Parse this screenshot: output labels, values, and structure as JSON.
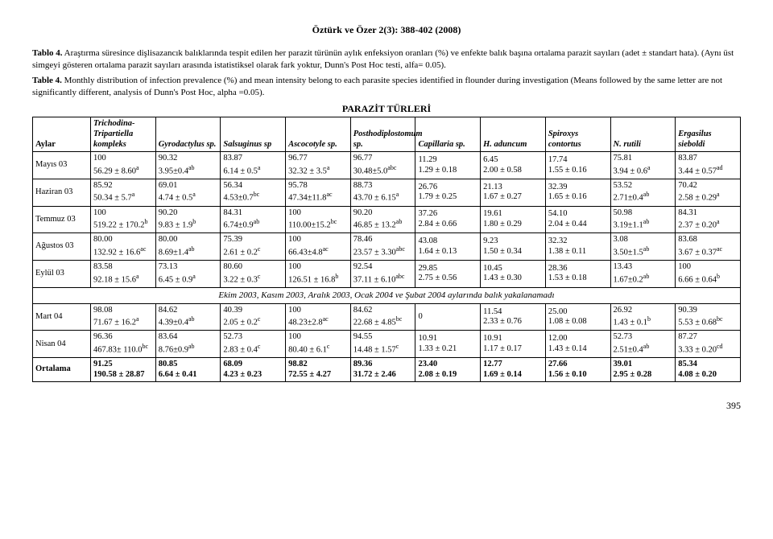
{
  "page_header": "Öztürk ve Özer 2(3): 388-402 (2008)",
  "caption_tr_label": "Tablo 4.",
  "caption_tr_text": "Araştırma süresince dişlisazancık balıklarında tespit edilen her parazit türünün aylık enfeksiyon oranları (%) ve enfekte balık başına ortalama parazit sayıları (adet ± standart hata). (Aynı üst simgeyi gösteren ortalama parazit sayıları arasında istatistiksel olarak fark yoktur, Dunn's Post Hoc testi, alfa= 0.05).",
  "caption_en_label": "Table 4.",
  "caption_en_text": "Monthly distribution of infection prevalence (%) and mean intensity belong to each parasite species identified in flounder during investigation (Means followed by the same letter are not significantly different, analysis of Dunn's Post Hoc, alpha =0.05).",
  "parazit_header": "PARAZİT TÜRLERİ",
  "columns": {
    "aylar": "Aylar",
    "c1": "Trichodina-Tripartiella kompleks",
    "c2": "Gyrodactylus sp.",
    "c3": "Salsuginus sp",
    "c4": "Ascocotyle sp.",
    "c5": "Posthodiplostomum sp.",
    "c6": "Capillaria sp.",
    "c7": "H. aduncum",
    "c8": "Spiroxys contortus",
    "c9": "N. rutili",
    "c10": "Ergasilus sieboldi"
  },
  "span_row_text": "Ekim 2003, Kasım 2003, Aralık 2003, Ocak 2004 ve Şubat 2004 aylarında balık yakalanamadı",
  "rows": [
    {
      "month": "Mayıs 03",
      "cells": [
        {
          "t": "100",
          "b": "56.29 ± 8.60",
          "sup": "a"
        },
        {
          "t": "90.32",
          "b": "3.95±0.4",
          "sup": "ab"
        },
        {
          "t": "83.87",
          "b": "6.14 ± 0.5",
          "sup": "a"
        },
        {
          "t": "96.77",
          "b": "32.32 ± 3.5",
          "sup": "a"
        },
        {
          "t": "96.77",
          "b": "30.48±5.0",
          "sup": "abc"
        },
        {
          "t": "11.29",
          "b": "1.29 ± 0.18",
          "sup": ""
        },
        {
          "t": "6.45",
          "b": "2.00 ± 0.58",
          "sup": ""
        },
        {
          "t": "17.74",
          "b": "1.55 ± 0.16",
          "sup": ""
        },
        {
          "t": "75.81",
          "b": "3.94 ± 0.6",
          "sup": "a"
        },
        {
          "t": "83.87",
          "b": "3.44 ± 0.57",
          "sup": "ad"
        }
      ]
    },
    {
      "month": "Haziran 03",
      "cells": [
        {
          "t": "85.92",
          "b": "50.34 ± 5.7",
          "sup": "a"
        },
        {
          "t": "69.01",
          "b": "4.74 ± 0.5",
          "sup": "a"
        },
        {
          "t": "56.34",
          "b": "4.53±0.7",
          "sup": "bc"
        },
        {
          "t": "95.78",
          "b": "47.34±11.8",
          "sup": "ac"
        },
        {
          "t": "88.73",
          "b": "43.70 ± 6.15",
          "sup": "a"
        },
        {
          "t": "26.76",
          "b": "1.79 ± 0.25",
          "sup": ""
        },
        {
          "t": "21.13",
          "b": "1.67 ± 0.27",
          "sup": ""
        },
        {
          "t": "32.39",
          "b": "1.65 ± 0.16",
          "sup": ""
        },
        {
          "t": "53.52",
          "b": "2.71±0.4",
          "sup": "ab"
        },
        {
          "t": "70.42",
          "b": "2.58 ± 0.29",
          "sup": "a"
        }
      ]
    },
    {
      "month": "Temmuz 03",
      "cells": [
        {
          "t": "100",
          "b": "519.22 ± 170.2",
          "sup": "b"
        },
        {
          "t": "90.20",
          "b": "9.83 ± 1.9",
          "sup": "b"
        },
        {
          "t": "84.31",
          "b": "6.74±0.9",
          "sup": "ab"
        },
        {
          "t": "100",
          "b": "110.00±15.2",
          "sup": "bc"
        },
        {
          "t": "90.20",
          "b": "46.85 ± 13.2",
          "sup": "ab"
        },
        {
          "t": "37.26",
          "b": "2.84 ± 0.66",
          "sup": ""
        },
        {
          "t": "19.61",
          "b": "1.80 ± 0.29",
          "sup": ""
        },
        {
          "t": "54.10",
          "b": "2.04 ± 0.44",
          "sup": ""
        },
        {
          "t": "50.98",
          "b": "3.19±1.1",
          "sup": "ab"
        },
        {
          "t": "84.31",
          "b": "2.37 ± 0.20",
          "sup": "a"
        }
      ]
    },
    {
      "month": "Ağustos 03",
      "cells": [
        {
          "t": "80.00",
          "b": "132.92 ± 16.6",
          "sup": "ac"
        },
        {
          "t": "80.00",
          "b": "8.69±1.4",
          "sup": "ab"
        },
        {
          "t": "75.39",
          "b": "2.61 ± 0.2",
          "sup": "c"
        },
        {
          "t": "100",
          "b": "66.43±4.8",
          "sup": "ac"
        },
        {
          "t": "78.46",
          "b": "23.57 ± 3.30",
          "sup": "abc"
        },
        {
          "t": "43.08",
          "b": "1.64 ± 0.13",
          "sup": ""
        },
        {
          "t": "9.23",
          "b": "1.50 ± 0.34",
          "sup": ""
        },
        {
          "t": "32.32",
          "b": "1.38 ± 0.11",
          "sup": ""
        },
        {
          "t": "3.08",
          "b": "3.50±1.5",
          "sup": "ab"
        },
        {
          "t": "83.68",
          "b": "3.67 ± 0.37",
          "sup": "ac"
        }
      ]
    },
    {
      "month": "Eylül 03",
      "cells": [
        {
          "t": "83.58",
          "b": "92.18 ± 15.6",
          "sup": "a"
        },
        {
          "t": "73.13",
          "b": "6.45 ± 0.9",
          "sup": "a"
        },
        {
          "t": "80.60",
          "b": "3.22 ± 0.3",
          "sup": "c"
        },
        {
          "t": "100",
          "b": "126.51 ± 16.8",
          "sup": "b"
        },
        {
          "t": "92.54",
          "b": "37.11 ± 6.10",
          "sup": "abc"
        },
        {
          "t": "29.85",
          "b": "2.75 ± 0.56",
          "sup": ""
        },
        {
          "t": "10.45",
          "b": "1.43 ± 0.30",
          "sup": ""
        },
        {
          "t": "28.36",
          "b": "1.53 ± 0.18",
          "sup": ""
        },
        {
          "t": "13.43",
          "b": "1.67±0.2",
          "sup": "ab"
        },
        {
          "t": "100",
          "b": "6.66 ± 0.64",
          "sup": "b"
        }
      ]
    }
  ],
  "rows2": [
    {
      "month": "Mart 04",
      "cells": [
        {
          "t": "98.08",
          "b": "71.67 ± 16.2",
          "sup": "a"
        },
        {
          "t": "84.62",
          "b": "4.39±0.4",
          "sup": "ab"
        },
        {
          "t": "40.39",
          "b": "2.05 ± 0.2",
          "sup": "c"
        },
        {
          "t": "100",
          "b": "48.23±2.8",
          "sup": "ac"
        },
        {
          "t": "84.62",
          "b": "22.68 ± 4.85",
          "sup": "bc"
        },
        {
          "t": "0",
          "b": "",
          "sup": ""
        },
        {
          "t": "11.54",
          "b": "2.33 ± 0.76",
          "sup": ""
        },
        {
          "t": "25.00",
          "b": "1.08 ± 0.08",
          "sup": ""
        },
        {
          "t": "26.92",
          "b": "1.43 ± 0.1",
          "sup": "b"
        },
        {
          "t": "90.39",
          "b": "5.53 ± 0.68",
          "sup": "bc"
        }
      ]
    },
    {
      "month": "Nisan 04",
      "cells": [
        {
          "t": "96.36",
          "b": "467.83± 110.0",
          "sup": "bc"
        },
        {
          "t": "83.64",
          "b": "8.76±0.9",
          "sup": "ab"
        },
        {
          "t": "52.73",
          "b": "2.83 ± 0.4",
          "sup": "c"
        },
        {
          "t": "100",
          "b": "80.40 ± 6.1",
          "sup": "c"
        },
        {
          "t": "94.55",
          "b": "14.48 ± 1.57",
          "sup": "c"
        },
        {
          "t": "10.91",
          "b": "1.33 ± 0.21",
          "sup": ""
        },
        {
          "t": "10.91",
          "b": "1.17 ± 0.17",
          "sup": ""
        },
        {
          "t": "12.00",
          "b": "1.43 ± 0.14",
          "sup": ""
        },
        {
          "t": "52.73",
          "b": "2.51±0.4",
          "sup": "ab"
        },
        {
          "t": "87.27",
          "b": "3.33 ± 0.20",
          "sup": "cd"
        }
      ]
    },
    {
      "month": "Ortalama",
      "bold": true,
      "cells": [
        {
          "t": "91.25",
          "b": "190.58 ± 28.87",
          "sup": ""
        },
        {
          "t": "80.85",
          "b": "6.64 ± 0.41",
          "sup": ""
        },
        {
          "t": "68.09",
          "b": "4.23 ± 0.23",
          "sup": ""
        },
        {
          "t": "98.82",
          "b": "72.55 ± 4.27",
          "sup": ""
        },
        {
          "t": "89.36",
          "b": "31.72 ± 2.46",
          "sup": ""
        },
        {
          "t": "23.40",
          "b": "2.08 ± 0.19",
          "sup": ""
        },
        {
          "t": "12.77",
          "b": "1.69 ± 0.14",
          "sup": ""
        },
        {
          "t": "27.66",
          "b": "1.56 ± 0.10",
          "sup": ""
        },
        {
          "t": "39.01",
          "b": "2.95 ± 0.28",
          "sup": ""
        },
        {
          "t": "85.34",
          "b": "4.08 ± 0.20",
          "sup": ""
        }
      ]
    }
  ],
  "page_number": "395"
}
